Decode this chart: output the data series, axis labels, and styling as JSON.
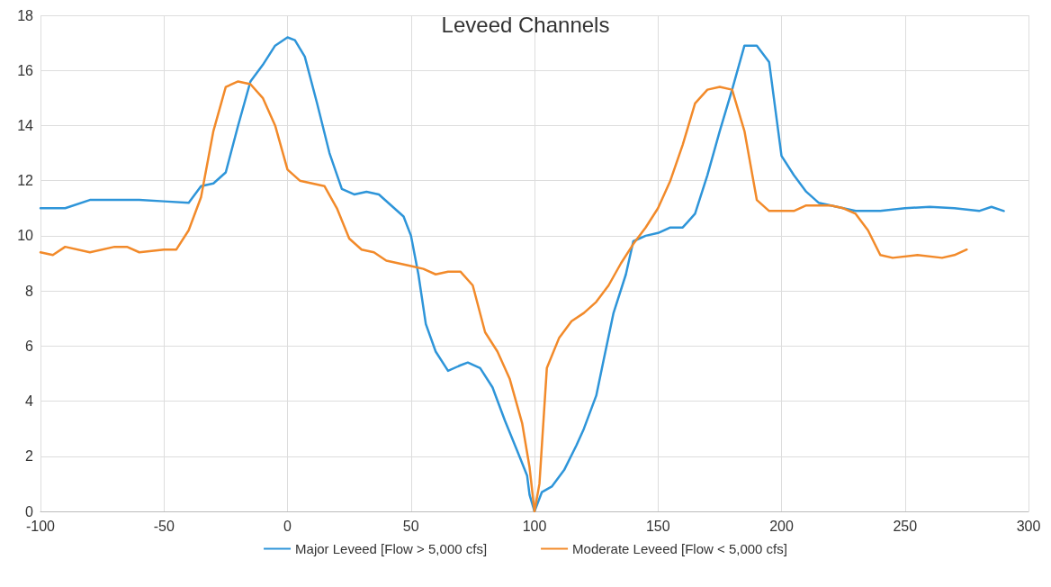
{
  "chart_data": {
    "type": "line",
    "title": "Leveed Channels",
    "xlim": [
      -100,
      300
    ],
    "xticks": [
      -100,
      -50,
      0,
      50,
      100,
      150,
      200,
      250,
      300
    ],
    "ylim": [
      0,
      18
    ],
    "yticks": [
      0,
      2,
      4,
      6,
      8,
      10,
      12,
      14,
      16,
      18
    ],
    "grid": true,
    "legend": "bottom",
    "marker": "none",
    "line_style": "solid",
    "series": [
      {
        "name": "Major Leveed [Flow > 5,000 cfs]",
        "color": "#2e95d9",
        "x": [
          -100,
          -90,
          -80,
          -70,
          -60,
          -50,
          -40,
          -35,
          -30,
          -25,
          -20,
          -15,
          -10,
          -5,
          0,
          3,
          7,
          12,
          17,
          22,
          27,
          32,
          37,
          42,
          47,
          50,
          53,
          56,
          60,
          65,
          70,
          73,
          78,
          83,
          88,
          93,
          97,
          98,
          100,
          103,
          107,
          112,
          117,
          120,
          125,
          128,
          132,
          137,
          140,
          145,
          150,
          155,
          160,
          165,
          170,
          175,
          180,
          185,
          190,
          195,
          200,
          205,
          210,
          215,
          220,
          230,
          240,
          250,
          260,
          270,
          280,
          285,
          290
        ],
        "values": [
          11.0,
          11.0,
          11.3,
          11.3,
          11.3,
          11.25,
          11.2,
          11.8,
          11.9,
          12.3,
          14.0,
          15.6,
          16.2,
          16.9,
          17.2,
          17.1,
          16.5,
          14.8,
          13.0,
          11.7,
          11.5,
          11.6,
          11.5,
          11.1,
          10.7,
          10.0,
          8.6,
          6.8,
          5.8,
          5.1,
          5.3,
          5.4,
          5.2,
          4.5,
          3.3,
          2.2,
          1.3,
          0.6,
          0,
          0.7,
          0.9,
          1.5,
          2.4,
          3.0,
          4.2,
          5.5,
          7.2,
          8.6,
          9.8,
          10.0,
          10.1,
          10.3,
          10.3,
          10.8,
          12.2,
          13.8,
          15.3,
          16.9,
          16.9,
          16.3,
          12.9,
          12.2,
          11.6,
          11.2,
          11.1,
          10.9,
          10.9,
          11.0,
          11.05,
          11.0,
          10.9,
          11.05,
          10.9
        ]
      },
      {
        "name": "Moderate Leveed [Flow < 5,000 cfs]",
        "color": "#f28a2a",
        "x": [
          -100,
          -95,
          -90,
          -80,
          -70,
          -65,
          -60,
          -50,
          -45,
          -40,
          -35,
          -30,
          -25,
          -20,
          -15,
          -10,
          -5,
          0,
          5,
          10,
          15,
          20,
          25,
          30,
          35,
          40,
          45,
          50,
          55,
          60,
          65,
          70,
          75,
          80,
          85,
          90,
          95,
          98,
          100,
          102,
          105,
          110,
          115,
          120,
          125,
          130,
          135,
          140,
          145,
          150,
          155,
          160,
          165,
          170,
          175,
          180,
          185,
          190,
          195,
          200,
          205,
          210,
          215,
          220,
          225,
          230,
          235,
          240,
          245,
          255,
          265,
          270,
          275
        ],
        "values": [
          9.4,
          9.3,
          9.6,
          9.4,
          9.6,
          9.6,
          9.4,
          9.5,
          9.5,
          10.2,
          11.4,
          13.8,
          15.4,
          15.6,
          15.5,
          15.0,
          14.0,
          12.4,
          12.0,
          11.9,
          11.8,
          11.0,
          9.9,
          9.5,
          9.4,
          9.1,
          9.0,
          8.9,
          8.8,
          8.6,
          8.7,
          8.7,
          8.2,
          6.5,
          5.8,
          4.8,
          3.2,
          1.6,
          0,
          1.0,
          5.2,
          6.3,
          6.9,
          7.2,
          7.6,
          8.2,
          9.0,
          9.7,
          10.3,
          11.0,
          12.0,
          13.3,
          14.8,
          15.3,
          15.4,
          15.3,
          13.8,
          11.3,
          10.9,
          10.9,
          10.9,
          11.1,
          11.1,
          11.1,
          11.0,
          10.8,
          10.2,
          9.3,
          9.2,
          9.3,
          9.2,
          9.3,
          9.5
        ]
      }
    ]
  }
}
